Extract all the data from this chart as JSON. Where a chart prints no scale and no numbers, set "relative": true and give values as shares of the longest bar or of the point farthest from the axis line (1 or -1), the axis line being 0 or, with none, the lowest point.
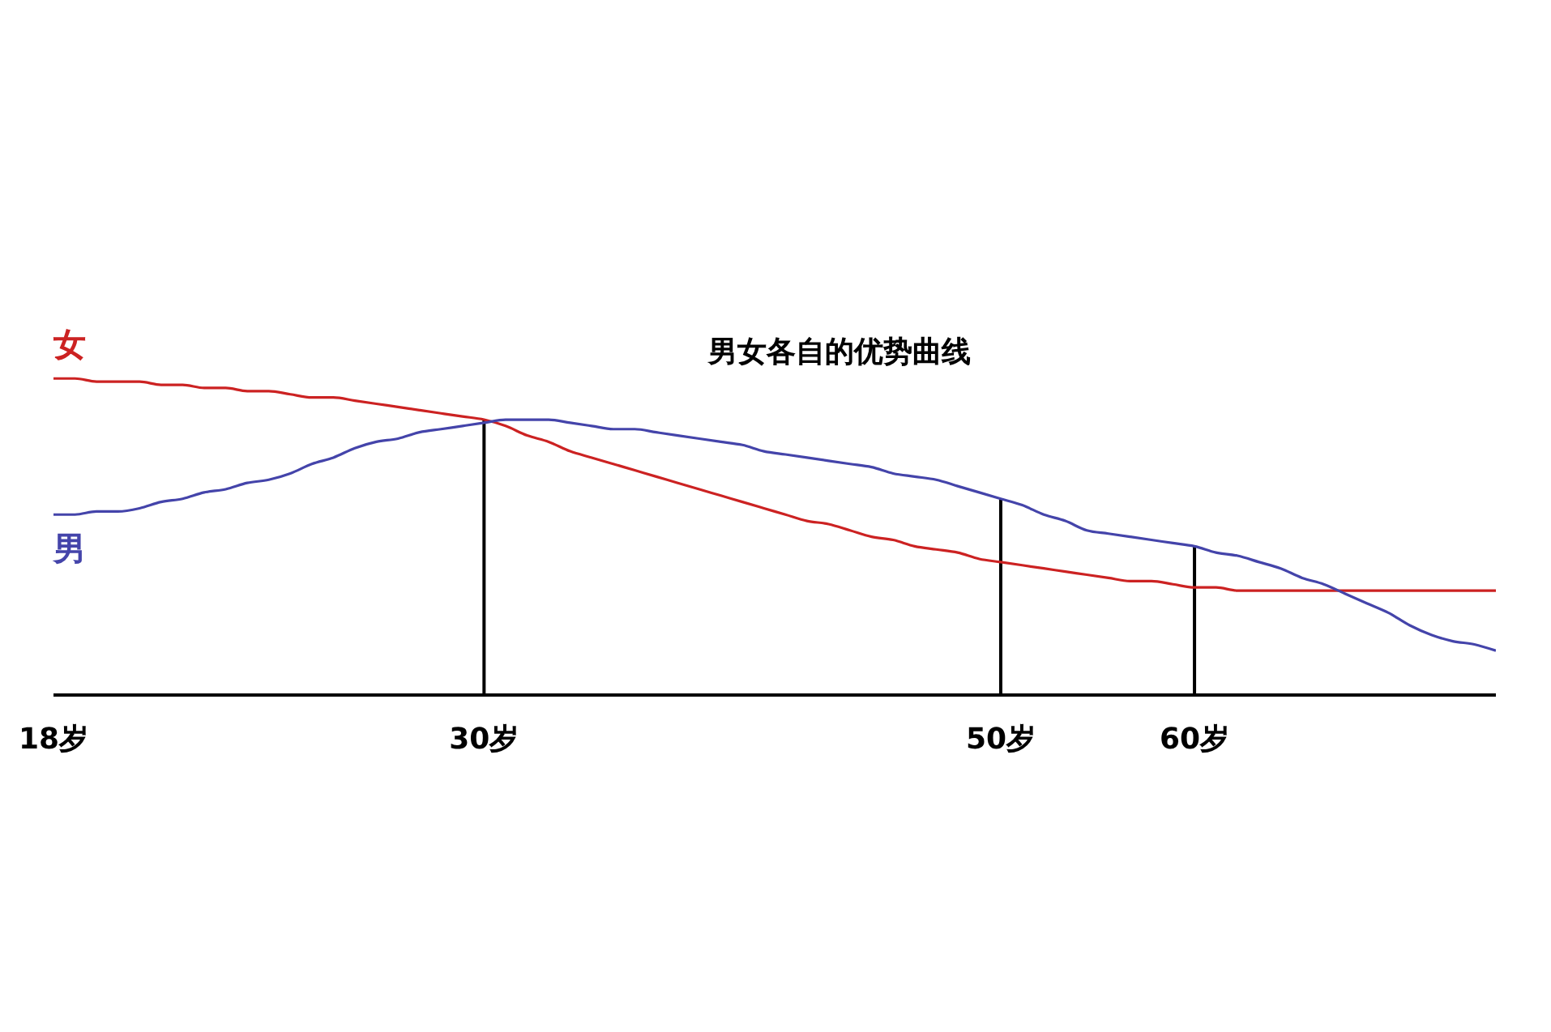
{
  "chart_data": {
    "type": "line",
    "title": "男女各自的优势曲线",
    "relative": true,
    "legend": false,
    "grid": false,
    "marker": "none",
    "line_style": "solid",
    "categories": [
      "18岁",
      null,
      null,
      null,
      null,
      null,
      null,
      null,
      null,
      null,
      null,
      null,
      null,
      null,
      null,
      null,
      null,
      null,
      null,
      null,
      "30岁",
      null,
      null,
      null,
      null,
      null,
      null,
      null,
      null,
      null,
      null,
      null,
      null,
      null,
      null,
      null,
      null,
      null,
      null,
      null,
      null,
      null,
      null,
      null,
      "50岁",
      null,
      null,
      null,
      null,
      null,
      null,
      null,
      null,
      "60岁",
      null,
      null,
      null,
      null,
      null,
      null,
      null,
      null,
      null,
      null,
      null,
      null,
      null,
      null
    ],
    "series": [
      {
        "name": "女",
        "color": "#cc2222",
        "values": [
          1.0,
          1.0,
          0.99,
          0.99,
          0.99,
          0.98,
          0.98,
          0.97,
          0.97,
          0.96,
          0.96,
          0.95,
          0.94,
          0.94,
          0.93,
          0.92,
          0.91,
          0.9,
          0.89,
          0.88,
          0.87,
          0.85,
          0.82,
          0.8,
          0.77,
          0.75,
          0.73,
          0.71,
          0.69,
          0.67,
          0.65,
          0.63,
          0.61,
          0.59,
          0.57,
          0.55,
          0.54,
          0.52,
          0.5,
          0.49,
          0.47,
          0.46,
          0.45,
          0.43,
          0.42,
          0.41,
          0.4,
          0.39,
          0.38,
          0.37,
          0.36,
          0.36,
          0.35,
          0.34,
          0.34,
          0.33,
          0.33,
          0.33,
          0.33,
          0.33,
          0.33,
          0.33,
          0.33,
          0.33,
          0.33,
          0.33,
          0.33,
          0.33
        ]
      },
      {
        "name": "男",
        "color": "#4444aa",
        "values": [
          0.57,
          0.57,
          0.58,
          0.58,
          0.59,
          0.61,
          0.62,
          0.64,
          0.65,
          0.67,
          0.68,
          0.7,
          0.73,
          0.75,
          0.78,
          0.8,
          0.81,
          0.83,
          0.84,
          0.85,
          0.86,
          0.87,
          0.87,
          0.87,
          0.86,
          0.85,
          0.84,
          0.84,
          0.83,
          0.82,
          0.81,
          0.8,
          0.79,
          0.77,
          0.76,
          0.75,
          0.74,
          0.73,
          0.72,
          0.7,
          0.69,
          0.68,
          0.66,
          0.64,
          0.62,
          0.6,
          0.57,
          0.55,
          0.52,
          0.51,
          0.5,
          0.49,
          0.48,
          0.47,
          0.45,
          0.44,
          0.42,
          0.4,
          0.37,
          0.35,
          0.32,
          0.29,
          0.26,
          0.22,
          0.19,
          0.17,
          0.16,
          0.14
        ]
      }
    ],
    "ref_lines": [
      {
        "axis": "x",
        "value": "30岁",
        "color": "#000000"
      },
      {
        "axis": "x",
        "value": "50岁",
        "color": "#000000"
      },
      {
        "axis": "x",
        "value": "60岁",
        "color": "#000000"
      }
    ]
  }
}
